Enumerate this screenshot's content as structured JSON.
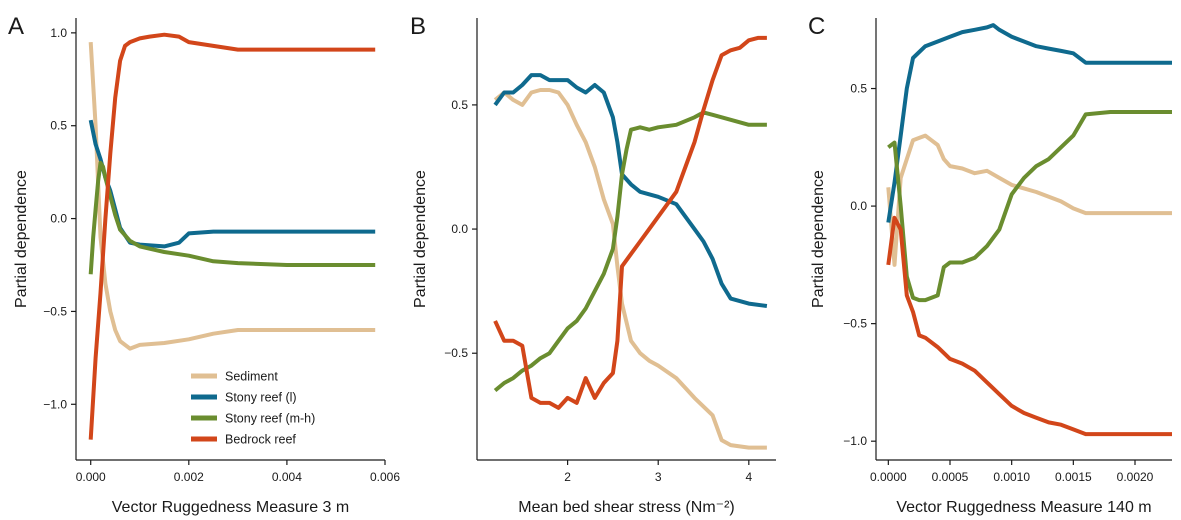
{
  "chart_data": [
    {
      "type": "line",
      "panel": "A",
      "xlabel": "Vector Ruggedness Measure 3 m",
      "ylabel": "Partial dependence",
      "xlim": [
        -0.0003,
        0.006
      ],
      "ylim": [
        -1.3,
        1.08
      ],
      "xticks": [
        0.0,
        0.002,
        0.004,
        0.006
      ],
      "xtick_labels": [
        "0.000",
        "0.002",
        "0.004",
        "0.006"
      ],
      "yticks": [
        -1.0,
        -0.5,
        0.0,
        0.5,
        1.0
      ],
      "ytick_labels": [
        "−1.0",
        "−0.5",
        "0.0",
        "0.5",
        "1.0"
      ],
      "legend": {
        "position": "bottom-center",
        "entries": [
          "Sediment",
          "Stony reef (l)",
          "Stony reef (m-h)",
          "Bedrock reef"
        ]
      },
      "series": [
        {
          "name": "Sediment",
          "color": "#e0bf93",
          "x": [
            0.0,
            0.0001,
            0.0002,
            0.0003,
            0.0004,
            0.0005,
            0.0006,
            0.0008,
            0.001,
            0.0015,
            0.002,
            0.0025,
            0.003,
            0.004,
            0.005,
            0.0058
          ],
          "y": [
            0.95,
            0.5,
            -0.1,
            -0.35,
            -0.5,
            -0.6,
            -0.66,
            -0.7,
            -0.68,
            -0.67,
            -0.65,
            -0.62,
            -0.6,
            -0.6,
            -0.6,
            -0.6
          ]
        },
        {
          "name": "Stony reef (l)",
          "color": "#0f6a8e",
          "x": [
            0.0,
            0.0001,
            0.0002,
            0.0003,
            0.0004,
            0.0005,
            0.0006,
            0.0008,
            0.001,
            0.0015,
            0.0018,
            0.002,
            0.0025,
            0.003,
            0.004,
            0.005,
            0.0058
          ],
          "y": [
            0.53,
            0.4,
            0.32,
            0.22,
            0.15,
            0.05,
            -0.05,
            -0.13,
            -0.14,
            -0.15,
            -0.13,
            -0.08,
            -0.07,
            -0.07,
            -0.07,
            -0.07,
            -0.07
          ]
        },
        {
          "name": "Stony reef (m-h)",
          "color": "#6a8d2f",
          "x": [
            0.0,
            5e-05,
            0.0001,
            0.00015,
            0.0002,
            0.00025,
            0.0003,
            0.0004,
            0.0005,
            0.0006,
            0.0008,
            0.001,
            0.0015,
            0.002,
            0.0025,
            0.003,
            0.004,
            0.005,
            0.0058
          ],
          "y": [
            -0.3,
            -0.1,
            0.05,
            0.2,
            0.3,
            0.28,
            0.22,
            0.12,
            0.02,
            -0.06,
            -0.12,
            -0.15,
            -0.18,
            -0.2,
            -0.23,
            -0.24,
            -0.25,
            -0.25,
            -0.25
          ]
        },
        {
          "name": "Bedrock reef",
          "color": "#d2461a",
          "x": [
            0.0,
            0.0001,
            0.0002,
            0.0003,
            0.0004,
            0.0005,
            0.0006,
            0.0007,
            0.0008,
            0.001,
            0.0012,
            0.0015,
            0.0018,
            0.002,
            0.0025,
            0.003,
            0.004,
            0.005,
            0.0058
          ],
          "y": [
            -1.19,
            -0.75,
            -0.4,
            0.0,
            0.35,
            0.65,
            0.85,
            0.93,
            0.95,
            0.97,
            0.98,
            0.99,
            0.98,
            0.95,
            0.93,
            0.91,
            0.91,
            0.91,
            0.91
          ]
        }
      ]
    },
    {
      "type": "line",
      "panel": "B",
      "xlabel": "Mean bed shear stress (Nm⁻²)",
      "ylabel": "Partial dependence",
      "xlim": [
        1.0,
        4.3
      ],
      "ylim": [
        -0.93,
        0.85
      ],
      "xticks": [
        2,
        3,
        4
      ],
      "xtick_labels": [
        "2",
        "3",
        "4"
      ],
      "yticks": [
        -0.5,
        0.0,
        0.5
      ],
      "ytick_labels": [
        "−0.5",
        "0.0",
        "0.5"
      ],
      "series": [
        {
          "name": "Sediment",
          "color": "#e0bf93",
          "x": [
            1.2,
            1.3,
            1.4,
            1.5,
            1.6,
            1.7,
            1.8,
            1.9,
            2.0,
            2.1,
            2.2,
            2.3,
            2.4,
            2.5,
            2.55,
            2.6,
            2.7,
            2.8,
            2.9,
            3.0,
            3.2,
            3.4,
            3.6,
            3.7,
            3.8,
            4.0,
            4.2
          ],
          "y": [
            0.52,
            0.55,
            0.52,
            0.5,
            0.55,
            0.56,
            0.56,
            0.55,
            0.5,
            0.42,
            0.35,
            0.25,
            0.12,
            0.02,
            -0.15,
            -0.3,
            -0.45,
            -0.5,
            -0.53,
            -0.55,
            -0.6,
            -0.68,
            -0.75,
            -0.85,
            -0.87,
            -0.88,
            -0.88
          ]
        },
        {
          "name": "Stony reef (l)",
          "color": "#0f6a8e",
          "x": [
            1.2,
            1.3,
            1.4,
            1.5,
            1.6,
            1.7,
            1.8,
            1.9,
            2.0,
            2.1,
            2.2,
            2.3,
            2.4,
            2.5,
            2.55,
            2.6,
            2.7,
            2.8,
            3.0,
            3.2,
            3.4,
            3.5,
            3.6,
            3.7,
            3.8,
            4.0,
            4.2
          ],
          "y": [
            0.5,
            0.55,
            0.55,
            0.58,
            0.62,
            0.62,
            0.6,
            0.6,
            0.6,
            0.57,
            0.55,
            0.58,
            0.55,
            0.45,
            0.35,
            0.22,
            0.18,
            0.15,
            0.13,
            0.1,
            0.0,
            -0.05,
            -0.12,
            -0.22,
            -0.28,
            -0.3,
            -0.31
          ]
        },
        {
          "name": "Stony reef (m-h)",
          "color": "#6a8d2f",
          "x": [
            1.2,
            1.3,
            1.4,
            1.5,
            1.6,
            1.7,
            1.8,
            1.9,
            2.0,
            2.1,
            2.2,
            2.3,
            2.4,
            2.5,
            2.55,
            2.6,
            2.65,
            2.7,
            2.8,
            2.9,
            3.0,
            3.2,
            3.4,
            3.5,
            3.6,
            3.8,
            4.0,
            4.2
          ],
          "y": [
            -0.65,
            -0.62,
            -0.6,
            -0.57,
            -0.55,
            -0.52,
            -0.5,
            -0.45,
            -0.4,
            -0.37,
            -0.32,
            -0.25,
            -0.18,
            -0.08,
            0.05,
            0.22,
            0.32,
            0.4,
            0.41,
            0.4,
            0.41,
            0.42,
            0.45,
            0.47,
            0.46,
            0.44,
            0.42,
            0.42
          ]
        },
        {
          "name": "Bedrock reef",
          "color": "#d2461a",
          "x": [
            1.2,
            1.3,
            1.4,
            1.5,
            1.6,
            1.7,
            1.8,
            1.9,
            2.0,
            2.1,
            2.2,
            2.3,
            2.4,
            2.5,
            2.55,
            2.6,
            2.7,
            2.8,
            2.9,
            3.0,
            3.1,
            3.2,
            3.3,
            3.4,
            3.5,
            3.6,
            3.7,
            3.8,
            3.9,
            4.0,
            4.1,
            4.2
          ],
          "y": [
            -0.37,
            -0.45,
            -0.45,
            -0.47,
            -0.68,
            -0.7,
            -0.7,
            -0.72,
            -0.68,
            -0.7,
            -0.6,
            -0.68,
            -0.62,
            -0.58,
            -0.45,
            -0.15,
            -0.1,
            -0.05,
            0.0,
            0.05,
            0.1,
            0.15,
            0.25,
            0.35,
            0.48,
            0.6,
            0.7,
            0.72,
            0.73,
            0.76,
            0.77,
            0.77
          ]
        }
      ]
    },
    {
      "type": "line",
      "panel": "C",
      "xlabel": "Vector Ruggedness Measure 140 m",
      "ylabel": "Partial dependence",
      "xlim": [
        -0.0001,
        0.0023
      ],
      "ylim": [
        -1.08,
        0.8
      ],
      "xticks": [
        0.0,
        0.0005,
        0.001,
        0.0015,
        0.002
      ],
      "xtick_labels": [
        "0.0000",
        "0.0005",
        "0.0010",
        "0.0015",
        "0.0020"
      ],
      "yticks": [
        -1.0,
        -0.5,
        0.0,
        0.5
      ],
      "ytick_labels": [
        "−1.0",
        "−0.5",
        "0.0",
        "0.5"
      ],
      "series": [
        {
          "name": "Sediment",
          "color": "#e0bf93",
          "x": [
            0.0,
            5e-05,
            0.0001,
            0.00015,
            0.0002,
            0.00025,
            0.0003,
            0.00035,
            0.0004,
            0.00045,
            0.0005,
            0.0006,
            0.0007,
            0.0008,
            0.0009,
            0.001,
            0.0012,
            0.0014,
            0.0015,
            0.0016,
            0.0018,
            0.002,
            0.0023
          ],
          "y": [
            0.08,
            -0.25,
            0.12,
            0.2,
            0.28,
            0.29,
            0.3,
            0.28,
            0.26,
            0.2,
            0.17,
            0.16,
            0.14,
            0.15,
            0.12,
            0.09,
            0.06,
            0.02,
            -0.01,
            -0.03,
            -0.03,
            -0.03,
            -0.03
          ]
        },
        {
          "name": "Stony reef (l)",
          "color": "#0f6a8e",
          "x": [
            0.0,
            5e-05,
            0.0001,
            0.00015,
            0.0002,
            0.0003,
            0.0004,
            0.0005,
            0.0006,
            0.0007,
            0.0008,
            0.00085,
            0.0009,
            0.001,
            0.0011,
            0.0012,
            0.0013,
            0.0014,
            0.0015,
            0.0016,
            0.0018,
            0.002,
            0.0023
          ],
          "y": [
            -0.07,
            0.1,
            0.3,
            0.5,
            0.63,
            0.68,
            0.7,
            0.72,
            0.74,
            0.75,
            0.76,
            0.77,
            0.75,
            0.72,
            0.7,
            0.68,
            0.67,
            0.66,
            0.65,
            0.61,
            0.61,
            0.61,
            0.61
          ]
        },
        {
          "name": "Stony reef (m-h)",
          "color": "#6a8d2f",
          "x": [
            0.0,
            5e-05,
            0.0001,
            0.00015,
            0.0002,
            0.00025,
            0.0003,
            0.0004,
            0.00045,
            0.0005,
            0.0006,
            0.0007,
            0.0008,
            0.0009,
            0.001,
            0.0011,
            0.0012,
            0.0013,
            0.0014,
            0.0015,
            0.0016,
            0.0018,
            0.002,
            0.0023
          ],
          "y": [
            0.25,
            0.27,
            0.0,
            -0.3,
            -0.39,
            -0.4,
            -0.4,
            -0.38,
            -0.26,
            -0.24,
            -0.24,
            -0.22,
            -0.17,
            -0.1,
            0.05,
            0.12,
            0.17,
            0.2,
            0.25,
            0.3,
            0.39,
            0.4,
            0.4,
            0.4
          ]
        },
        {
          "name": "Bedrock reef",
          "color": "#d2461a",
          "x": [
            0.0,
            5e-05,
            0.0001,
            0.00015,
            0.0002,
            0.00025,
            0.0003,
            0.0004,
            0.0005,
            0.0006,
            0.0007,
            0.0008,
            0.0009,
            0.001,
            0.0011,
            0.0012,
            0.0013,
            0.0014,
            0.0015,
            0.0016,
            0.0018,
            0.002,
            0.0023
          ],
          "y": [
            -0.25,
            -0.05,
            -0.1,
            -0.38,
            -0.45,
            -0.55,
            -0.56,
            -0.6,
            -0.65,
            -0.67,
            -0.7,
            -0.75,
            -0.8,
            -0.85,
            -0.88,
            -0.9,
            -0.92,
            -0.93,
            -0.95,
            -0.97,
            -0.97,
            -0.97,
            -0.97
          ]
        }
      ]
    }
  ],
  "panel_labels": [
    "A",
    "B",
    "C"
  ],
  "legend_labels": [
    "Sediment",
    "Stony reef (l)",
    "Stony reef (m-h)",
    "Bedrock reef"
  ],
  "colors": {
    "sediment": "#e0bf93",
    "stony_reef_l": "#0f6a8e",
    "stony_reef_mh": "#6a8d2f",
    "bedrock_reef": "#d2461a"
  }
}
